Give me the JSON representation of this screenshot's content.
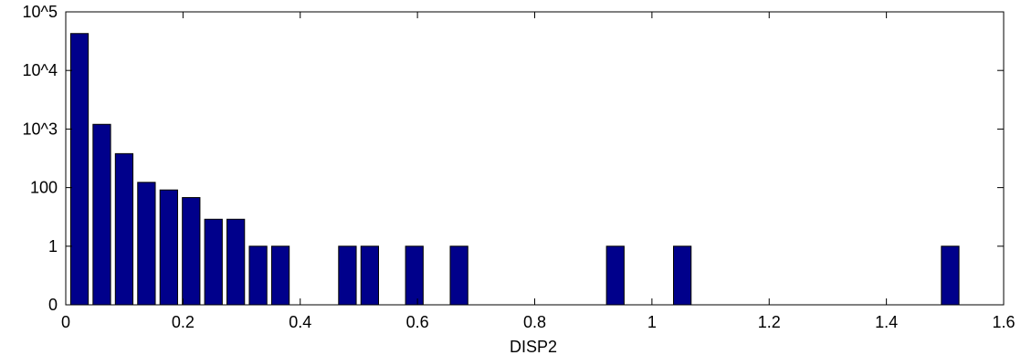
{
  "chart_data": {
    "type": "bar",
    "xlabel": "DISP2",
    "ylabel": "",
    "title": "",
    "xlim": [
      0,
      1.6
    ],
    "x_ticks": [
      0,
      0.2,
      0.4,
      0.6,
      0.8,
      1,
      1.2,
      1.4,
      1.6
    ],
    "x_tick_labels": [
      "0",
      "0.2",
      "0.4",
      "0.6",
      "0.8",
      "1",
      "1.2",
      "1.4",
      "1.6"
    ],
    "y_scale": "categorical-log (labels as printed)",
    "y_tick_labels": [
      "0",
      "1",
      "100",
      "10^3",
      "10^4",
      "10^5"
    ],
    "bar_color": "#00008b",
    "bars": [
      {
        "x": 0.0234,
        "level": 4.63
      },
      {
        "x": 0.0615,
        "level": 3.08
      },
      {
        "x": 0.0996,
        "level": 2.58
      },
      {
        "x": 0.1377,
        "level": 2.09
      },
      {
        "x": 0.1758,
        "level": 1.96
      },
      {
        "x": 0.2139,
        "level": 1.83
      },
      {
        "x": 0.252,
        "level": 1.46
      },
      {
        "x": 0.29,
        "level": 1.46
      },
      {
        "x": 0.3281,
        "level": 1.0
      },
      {
        "x": 0.3662,
        "level": 1.0
      },
      {
        "x": 0.4805,
        "level": 1.0
      },
      {
        "x": 0.5186,
        "level": 1.0
      },
      {
        "x": 0.5947,
        "level": 1.0
      },
      {
        "x": 0.6709,
        "level": 1.0
      },
      {
        "x": 0.9375,
        "level": 1.0
      },
      {
        "x": 1.0518,
        "level": 1.0
      },
      {
        "x": 1.5088,
        "level": 1.0
      }
    ]
  }
}
